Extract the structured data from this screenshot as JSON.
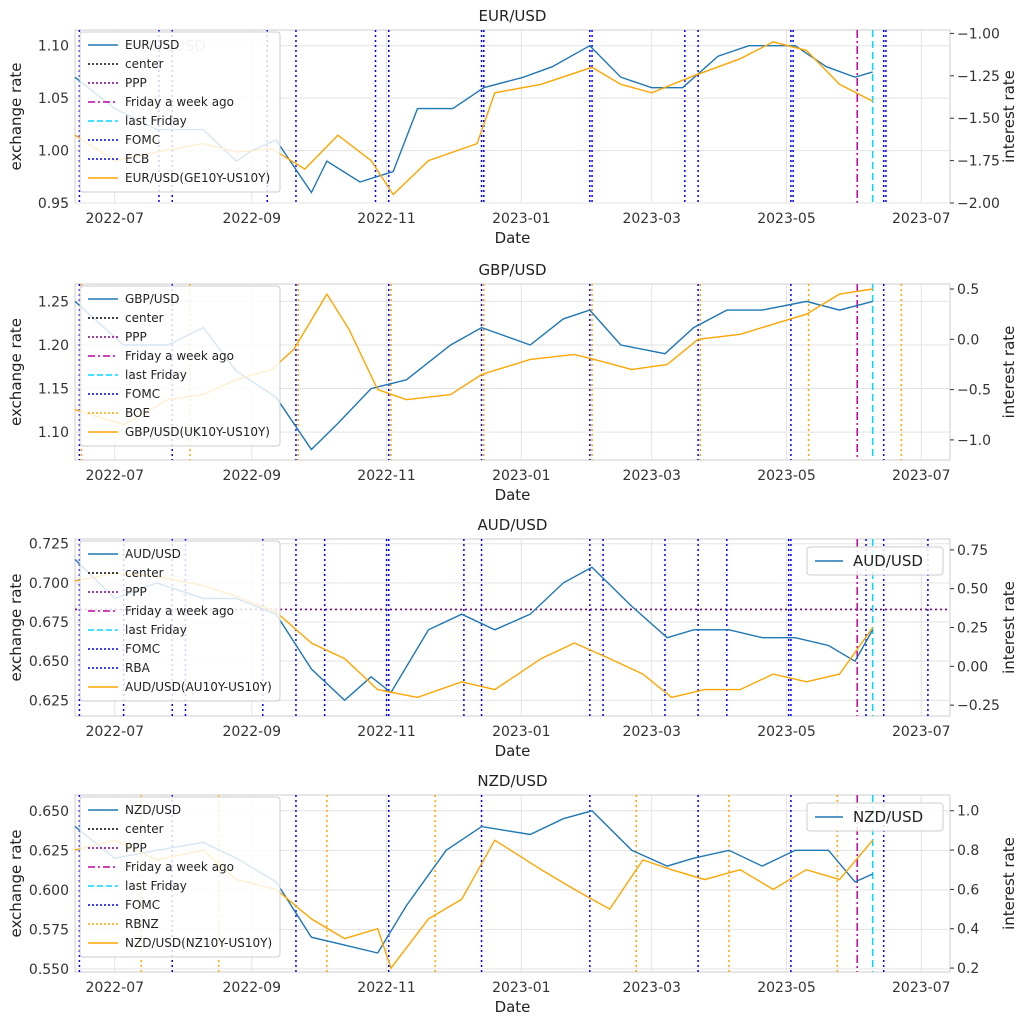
{
  "colors": {
    "blue": "#1f77b4",
    "orange": "#ffa500",
    "black": "#000000",
    "purple": "#800080",
    "magenta": "#c000a0",
    "cyan": "#00d8ff",
    "fomc": "#0000ff"
  },
  "chart_data": [
    {
      "type": "line",
      "title": "EUR/USD",
      "xlabel": "Date",
      "ylabel_left": "exchange rate",
      "ylabel_right": "interest rate",
      "xticks": [
        "2022-07",
        "2022-09",
        "2022-11",
        "2023-01",
        "2023-03",
        "2023-05",
        "2023-07"
      ],
      "xrange": [
        "2022-06-13",
        "2023-07-14"
      ],
      "ylim_left": [
        0.95,
        1.115
      ],
      "yticks_left": [
        "0.95",
        "1.00",
        "1.05",
        "1.10"
      ],
      "ylim_right": [
        -2.0,
        -0.98
      ],
      "yticks_right": [
        "−2.00",
        "−1.75",
        "−1.50",
        "−1.25",
        "−1.00"
      ],
      "grid": true,
      "legend": {
        "placement": "upper-left",
        "entries": [
          "EUR/USD",
          "center",
          "PPP",
          "Friday a week ago",
          "last Friday",
          "FOMC",
          "ECB",
          "EUR/USD(GE10Y-US10Y)"
        ]
      },
      "faded_label": "EUR/USD",
      "series": [
        {
          "name": "EUR/USD",
          "axis": "left",
          "color": "blue",
          "x": [
            "2022-06-13",
            "2022-07-01",
            "2022-07-20",
            "2022-08-10",
            "2022-08-25",
            "2022-09-01",
            "2022-09-12",
            "2022-09-28",
            "2022-10-05",
            "2022-10-20",
            "2022-11-04",
            "2022-11-15",
            "2022-12-01",
            "2022-12-15",
            "2023-01-02",
            "2023-01-15",
            "2023-02-01",
            "2023-02-15",
            "2023-03-01",
            "2023-03-15",
            "2023-03-31",
            "2023-04-14",
            "2023-04-28",
            "2023-05-05",
            "2023-05-19",
            "2023-06-01",
            "2023-06-09"
          ],
          "y": [
            1.07,
            1.04,
            1.02,
            1.02,
            0.99,
            1.0,
            1.01,
            0.96,
            0.99,
            0.97,
            0.98,
            1.04,
            1.04,
            1.06,
            1.07,
            1.08,
            1.1,
            1.07,
            1.06,
            1.06,
            1.09,
            1.1,
            1.1,
            1.1,
            1.08,
            1.07,
            1.075
          ]
        },
        {
          "name": "EUR/USD(GE10Y-US10Y)",
          "axis": "right",
          "color": "orange",
          "x": [
            "2022-06-13",
            "2022-07-01",
            "2022-07-20",
            "2022-08-10",
            "2022-08-25",
            "2022-09-10",
            "2022-09-25",
            "2022-10-10",
            "2022-10-25",
            "2022-11-04",
            "2022-11-20",
            "2022-12-01",
            "2022-12-12",
            "2022-12-20",
            "2023-01-10",
            "2023-02-02",
            "2023-02-15",
            "2023-03-01",
            "2023-03-20",
            "2023-04-10",
            "2023-04-25",
            "2023-05-10",
            "2023-05-25",
            "2023-06-09"
          ],
          "y": [
            -1.6,
            -1.75,
            -1.7,
            -1.65,
            -1.7,
            -1.68,
            -1.8,
            -1.6,
            -1.75,
            -1.95,
            -1.75,
            -1.7,
            -1.65,
            -1.35,
            -1.3,
            -1.2,
            -1.3,
            -1.35,
            -1.25,
            -1.15,
            -1.05,
            -1.1,
            -1.3,
            -1.4
          ]
        }
      ],
      "vlines": [
        {
          "name": "FOMC",
          "color": "fomc",
          "dates": [
            "2022-06-15",
            "2022-07-27",
            "2022-09-21",
            "2022-11-02",
            "2022-12-14",
            "2023-02-01",
            "2023-03-22",
            "2023-05-03",
            "2023-06-14"
          ]
        },
        {
          "name": "ECB",
          "color": "fomc",
          "dates": [
            "2022-06-09",
            "2022-07-21",
            "2022-09-08",
            "2022-10-27",
            "2022-12-15",
            "2023-02-02",
            "2023-03-16",
            "2023-05-04",
            "2023-06-15"
          ]
        },
        {
          "name": "Friday a week ago",
          "color": "magenta",
          "dates": [
            "2023-06-02"
          ]
        },
        {
          "name": "last Friday",
          "color": "cyan",
          "dates": [
            "2023-06-09"
          ]
        }
      ]
    },
    {
      "type": "line",
      "title": "GBP/USD",
      "xlabel": "Date",
      "ylabel_left": "exchange rate",
      "ylabel_right": "interest rate",
      "xticks": [
        "2022-07",
        "2022-09",
        "2022-11",
        "2023-01",
        "2023-03",
        "2023-05",
        "2023-07"
      ],
      "xrange": [
        "2022-06-13",
        "2023-07-14"
      ],
      "ylim_left": [
        1.068,
        1.27
      ],
      "yticks_left": [
        "1.10",
        "1.15",
        "1.20",
        "1.25"
      ],
      "ylim_right": [
        -1.2,
        0.55
      ],
      "yticks_right": [
        "−1.0",
        "−0.5",
        "0.0",
        "0.5"
      ],
      "grid": true,
      "legend": {
        "placement": "upper-left",
        "entries": [
          "GBP/USD",
          "center",
          "PPP",
          "Friday a week ago",
          "last Friday",
          "FOMC",
          "BOE",
          "GBP/USD(UK10Y-US10Y)"
        ]
      },
      "faded_label": "GBP/USD",
      "series": [
        {
          "name": "GBP/USD",
          "axis": "left",
          "color": "blue",
          "x": [
            "2022-06-13",
            "2022-07-05",
            "2022-07-25",
            "2022-08-10",
            "2022-08-25",
            "2022-09-12",
            "2022-09-28",
            "2022-10-10",
            "2022-10-25",
            "2022-11-10",
            "2022-11-30",
            "2022-12-14",
            "2023-01-05",
            "2023-01-20",
            "2023-02-01",
            "2023-02-15",
            "2023-03-07",
            "2023-03-20",
            "2023-04-04",
            "2023-04-20",
            "2023-05-10",
            "2023-05-25",
            "2023-06-09"
          ],
          "y": [
            1.25,
            1.2,
            1.2,
            1.22,
            1.17,
            1.14,
            1.08,
            1.11,
            1.15,
            1.16,
            1.2,
            1.22,
            1.2,
            1.23,
            1.24,
            1.2,
            1.19,
            1.22,
            1.24,
            1.24,
            1.25,
            1.24,
            1.25
          ]
        },
        {
          "name": "GBP/USD(UK10Y-US10Y)",
          "axis": "right",
          "color": "orange",
          "x": [
            "2022-06-13",
            "2022-07-05",
            "2022-07-25",
            "2022-08-10",
            "2022-08-25",
            "2022-09-10",
            "2022-09-20",
            "2022-10-05",
            "2022-10-15",
            "2022-10-28",
            "2022-11-10",
            "2022-11-30",
            "2022-12-14",
            "2023-01-05",
            "2023-01-25",
            "2023-02-03",
            "2023-02-20",
            "2023-03-08",
            "2023-03-22",
            "2023-04-10",
            "2023-04-25",
            "2023-05-10",
            "2023-05-25",
            "2023-06-09"
          ],
          "y": [
            -0.7,
            -0.85,
            -0.6,
            -0.55,
            -0.4,
            -0.3,
            -0.1,
            0.45,
            0.1,
            -0.5,
            -0.6,
            -0.55,
            -0.35,
            -0.2,
            -0.15,
            -0.2,
            -0.3,
            -0.25,
            0.0,
            0.05,
            0.15,
            0.25,
            0.45,
            0.5
          ]
        }
      ],
      "vlines": [
        {
          "name": "FOMC",
          "color": "fomc",
          "dates": [
            "2022-06-15",
            "2022-07-27",
            "2022-09-21",
            "2022-11-02",
            "2022-12-14",
            "2023-02-01",
            "2023-03-22",
            "2023-05-03",
            "2023-06-14"
          ]
        },
        {
          "name": "BOE",
          "color": "orange",
          "dates": [
            "2022-06-16",
            "2022-08-04",
            "2022-09-22",
            "2022-11-03",
            "2022-12-15",
            "2023-02-02",
            "2023-03-23",
            "2023-05-11",
            "2023-06-22"
          ]
        },
        {
          "name": "Friday a week ago",
          "color": "magenta",
          "dates": [
            "2023-06-02"
          ]
        },
        {
          "name": "last Friday",
          "color": "cyan",
          "dates": [
            "2023-06-09"
          ]
        }
      ]
    },
    {
      "type": "line",
      "title": "AUD/USD",
      "xlabel": "Date",
      "ylabel_left": "exchange rate",
      "ylabel_right": "interest rate",
      "xticks": [
        "2022-07",
        "2022-09",
        "2022-11",
        "2023-01",
        "2023-03",
        "2023-05",
        "2023-07"
      ],
      "xrange": [
        "2022-06-13",
        "2023-07-14"
      ],
      "ylim_left": [
        0.615,
        0.728
      ],
      "yticks_left": [
        "0.625",
        "0.650",
        "0.675",
        "0.700",
        "0.725"
      ],
      "ylim_right": [
        -0.32,
        0.82
      ],
      "yticks_right": [
        "−0.25",
        "0.00",
        "0.25",
        "0.50",
        "0.75"
      ],
      "grid": true,
      "ppp_level": 0.683,
      "legend": {
        "placement": "upper-left",
        "entries": [
          "AUD/USD",
          "center",
          "PPP",
          "Friday a week ago",
          "last Friday",
          "FOMC",
          "RBA",
          "AUD/USD(AU10Y-US10Y)"
        ]
      },
      "right_legend": "AUD/USD",
      "series": [
        {
          "name": "AUD/USD",
          "axis": "left",
          "color": "blue",
          "x": [
            "2022-06-13",
            "2022-07-01",
            "2022-07-20",
            "2022-08-10",
            "2022-08-25",
            "2022-09-12",
            "2022-09-28",
            "2022-10-13",
            "2022-10-25",
            "2022-11-03",
            "2022-11-20",
            "2022-12-05",
            "2022-12-20",
            "2023-01-05",
            "2023-01-20",
            "2023-02-02",
            "2023-02-20",
            "2023-03-08",
            "2023-03-20",
            "2023-04-05",
            "2023-04-20",
            "2023-05-05",
            "2023-05-20",
            "2023-06-01",
            "2023-06-09"
          ],
          "y": [
            0.715,
            0.69,
            0.7,
            0.69,
            0.69,
            0.68,
            0.645,
            0.625,
            0.64,
            0.63,
            0.67,
            0.68,
            0.67,
            0.68,
            0.7,
            0.71,
            0.685,
            0.665,
            0.67,
            0.67,
            0.665,
            0.665,
            0.66,
            0.65,
            0.67
          ]
        },
        {
          "name": "AUD/USD(AU10Y-US10Y)",
          "axis": "right",
          "color": "orange",
          "x": [
            "2022-06-13",
            "2022-07-01",
            "2022-07-20",
            "2022-08-10",
            "2022-08-25",
            "2022-09-12",
            "2022-09-28",
            "2022-10-13",
            "2022-10-28",
            "2022-11-15",
            "2022-12-05",
            "2022-12-20",
            "2023-01-10",
            "2023-01-25",
            "2023-02-10",
            "2023-02-25",
            "2023-03-10",
            "2023-03-25",
            "2023-04-10",
            "2023-04-25",
            "2023-05-10",
            "2023-05-25",
            "2023-06-09"
          ],
          "y": [
            0.55,
            0.6,
            0.58,
            0.52,
            0.45,
            0.35,
            0.15,
            0.05,
            -0.15,
            -0.2,
            -0.1,
            -0.15,
            0.05,
            0.15,
            0.05,
            -0.05,
            -0.2,
            -0.15,
            -0.15,
            -0.05,
            -0.1,
            -0.05,
            0.25
          ]
        }
      ],
      "vlines": [
        {
          "name": "FOMC",
          "color": "fomc",
          "dates": [
            "2022-06-15",
            "2022-07-27",
            "2022-09-21",
            "2022-11-02",
            "2022-12-14",
            "2023-02-01",
            "2023-03-22",
            "2023-05-03",
            "2023-06-14"
          ]
        },
        {
          "name": "RBA",
          "color": "fomc",
          "dates": [
            "2022-06-07",
            "2022-07-05",
            "2022-08-02",
            "2022-09-06",
            "2022-10-04",
            "2022-11-01",
            "2022-12-06",
            "2023-02-07",
            "2023-03-07",
            "2023-04-04",
            "2023-05-02",
            "2023-06-06",
            "2023-07-04"
          ]
        },
        {
          "name": "Friday a week ago",
          "color": "magenta",
          "dates": [
            "2023-06-02"
          ]
        },
        {
          "name": "last Friday",
          "color": "cyan",
          "dates": [
            "2023-06-09"
          ]
        }
      ]
    },
    {
      "type": "line",
      "title": "NZD/USD",
      "xlabel": "Date",
      "ylabel_left": "exchange rate",
      "ylabel_right": "interest rate",
      "xticks": [
        "2022-07",
        "2022-09",
        "2022-11",
        "2023-01",
        "2023-03",
        "2023-05",
        "2023-07"
      ],
      "xrange": [
        "2022-06-13",
        "2023-07-14"
      ],
      "ylim_left": [
        0.548,
        0.66
      ],
      "yticks_left": [
        "0.550",
        "0.575",
        "0.600",
        "0.625",
        "0.650"
      ],
      "ylim_right": [
        0.18,
        1.08
      ],
      "yticks_right": [
        "0.2",
        "0.4",
        "0.6",
        "0.8",
        "1.0"
      ],
      "grid": true,
      "legend": {
        "placement": "upper-left",
        "entries": [
          "NZD/USD",
          "center",
          "PPP",
          "Friday a week ago",
          "last Friday",
          "FOMC",
          "RBNZ",
          "NZD/USD(NZ10Y-US10Y)"
        ]
      },
      "right_legend": "NZD/USD",
      "series": [
        {
          "name": "NZD/USD",
          "axis": "left",
          "color": "blue",
          "x": [
            "2022-06-13",
            "2022-07-01",
            "2022-07-20",
            "2022-08-10",
            "2022-08-25",
            "2022-09-12",
            "2022-09-28",
            "2022-10-13",
            "2022-10-28",
            "2022-11-10",
            "2022-11-28",
            "2022-12-14",
            "2023-01-05",
            "2023-01-20",
            "2023-02-02",
            "2023-02-20",
            "2023-03-08",
            "2023-03-20",
            "2023-04-05",
            "2023-04-20",
            "2023-05-05",
            "2023-05-20",
            "2023-06-01",
            "2023-06-09"
          ],
          "y": [
            0.64,
            0.62,
            0.625,
            0.63,
            0.62,
            0.605,
            0.57,
            0.565,
            0.56,
            0.59,
            0.625,
            0.64,
            0.635,
            0.645,
            0.65,
            0.625,
            0.615,
            0.62,
            0.625,
            0.615,
            0.625,
            0.625,
            0.605,
            0.61
          ]
        },
        {
          "name": "NZD/USD(NZ10Y-US10Y)",
          "axis": "right",
          "color": "orange",
          "x": [
            "2022-06-13",
            "2022-07-01",
            "2022-07-20",
            "2022-08-10",
            "2022-08-25",
            "2022-09-12",
            "2022-09-28",
            "2022-10-13",
            "2022-10-28",
            "2022-11-03",
            "2022-11-20",
            "2022-12-05",
            "2022-12-20",
            "2023-01-10",
            "2023-01-25",
            "2023-02-10",
            "2023-02-25",
            "2023-03-10",
            "2023-03-25",
            "2023-04-10",
            "2023-04-25",
            "2023-05-10",
            "2023-05-25",
            "2023-06-09"
          ],
          "y": [
            0.8,
            0.85,
            0.75,
            0.8,
            0.65,
            0.6,
            0.45,
            0.35,
            0.4,
            0.2,
            0.45,
            0.55,
            0.85,
            0.7,
            0.6,
            0.5,
            0.75,
            0.7,
            0.65,
            0.7,
            0.6,
            0.7,
            0.65,
            0.85
          ]
        }
      ],
      "vlines": [
        {
          "name": "FOMC",
          "color": "fomc",
          "dates": [
            "2022-06-15",
            "2022-07-27",
            "2022-09-21",
            "2022-11-02",
            "2022-12-14",
            "2023-02-01",
            "2023-03-22",
            "2023-05-03",
            "2023-06-14"
          ]
        },
        {
          "name": "RBNZ",
          "color": "orange",
          "dates": [
            "2022-07-13",
            "2022-08-17",
            "2022-10-05",
            "2022-11-23",
            "2023-02-22",
            "2023-04-05",
            "2023-05-24"
          ]
        },
        {
          "name": "Friday a week ago",
          "color": "magenta",
          "dates": [
            "2023-06-02"
          ]
        },
        {
          "name": "last Friday",
          "color": "cyan",
          "dates": [
            "2023-06-09"
          ]
        }
      ]
    }
  ]
}
